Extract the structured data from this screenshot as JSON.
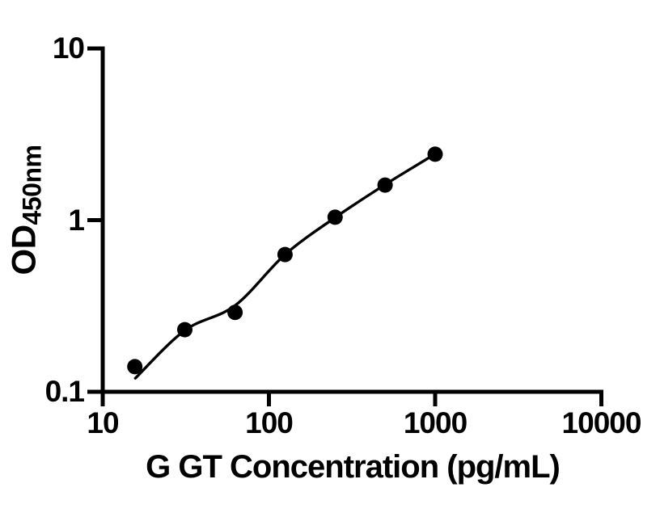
{
  "chart_data": {
    "type": "scatter",
    "title": "",
    "xlabel": "G GT Concentration (pg/mL)",
    "ylabel_main": "OD",
    "ylabel_sub": "450nm",
    "x_scale": "log10",
    "y_scale": "log10",
    "xlim": [
      10,
      10000
    ],
    "ylim": [
      0.1,
      10
    ],
    "x_tick_values": [
      10,
      100,
      1000,
      10000
    ],
    "x_tick_labels": [
      "10",
      "100",
      "1000",
      "10000"
    ],
    "y_tick_values": [
      0.1,
      1,
      10
    ],
    "y_tick_labels": [
      "0.1",
      "1",
      "10"
    ],
    "grid": false,
    "legend_position": "none",
    "background_color": "#ffffff",
    "axis_color": "#000000",
    "series": [
      {
        "name": "standard-points",
        "type": "scatter",
        "marker": "filled-circle",
        "color": "#000000",
        "x": [
          15.6,
          31.2,
          62.5,
          125,
          250,
          500,
          1000
        ],
        "y": [
          0.14,
          0.23,
          0.29,
          0.63,
          1.04,
          1.6,
          2.42
        ]
      },
      {
        "name": "fit-curve",
        "type": "line",
        "color": "#000000",
        "x": [
          15.7,
          31.25,
          62.5,
          125,
          250,
          500,
          1000
        ],
        "y": [
          0.12,
          0.228,
          0.318,
          0.63,
          1.035,
          1.61,
          2.43
        ]
      }
    ]
  }
}
